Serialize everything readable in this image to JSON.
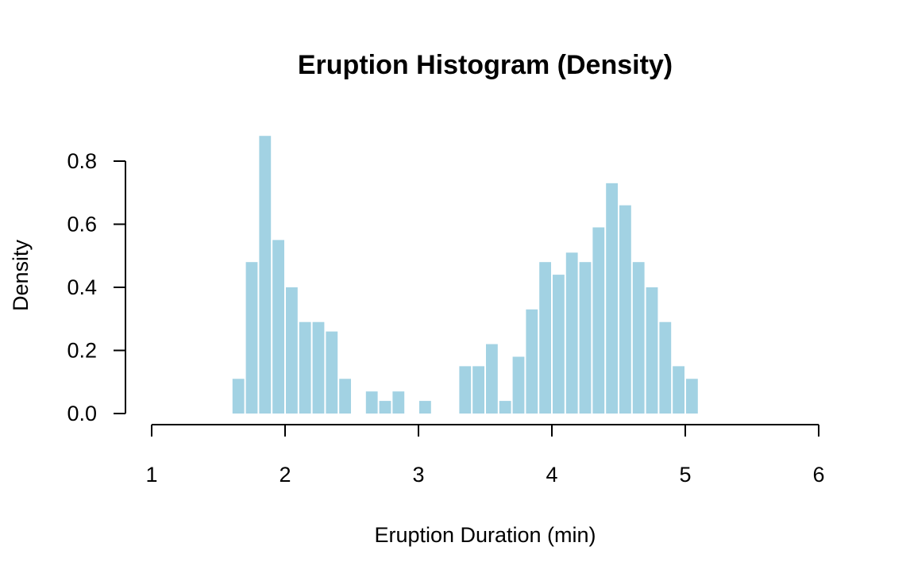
{
  "chart_data": {
    "type": "bar",
    "title": "Eruption Histogram (Density)",
    "xlabel": "Eruption Duration (min)",
    "ylabel": "Density",
    "xlim": [
      1,
      6
    ],
    "ylim": [
      0,
      0.8
    ],
    "x_ticks": [
      "1",
      "2",
      "3",
      "4",
      "5",
      "6"
    ],
    "y_ticks": [
      "0.0",
      "0.2",
      "0.4",
      "0.6",
      "0.8"
    ],
    "bin_width": 0.1,
    "bins": [
      {
        "start": 1.6,
        "value": 0.11
      },
      {
        "start": 1.7,
        "value": 0.48
      },
      {
        "start": 1.8,
        "value": 0.88
      },
      {
        "start": 1.9,
        "value": 0.55
      },
      {
        "start": 2.0,
        "value": 0.4
      },
      {
        "start": 2.1,
        "value": 0.29
      },
      {
        "start": 2.2,
        "value": 0.29
      },
      {
        "start": 2.3,
        "value": 0.26
      },
      {
        "start": 2.4,
        "value": 0.11
      },
      {
        "start": 2.6,
        "value": 0.07
      },
      {
        "start": 2.7,
        "value": 0.04
      },
      {
        "start": 2.8,
        "value": 0.07
      },
      {
        "start": 3.0,
        "value": 0.04
      },
      {
        "start": 3.3,
        "value": 0.15
      },
      {
        "start": 3.4,
        "value": 0.15
      },
      {
        "start": 3.5,
        "value": 0.22
      },
      {
        "start": 3.6,
        "value": 0.04
      },
      {
        "start": 3.7,
        "value": 0.18
      },
      {
        "start": 3.8,
        "value": 0.33
      },
      {
        "start": 3.9,
        "value": 0.48
      },
      {
        "start": 4.0,
        "value": 0.44
      },
      {
        "start": 4.1,
        "value": 0.51
      },
      {
        "start": 4.2,
        "value": 0.48
      },
      {
        "start": 4.3,
        "value": 0.59
      },
      {
        "start": 4.4,
        "value": 0.73
      },
      {
        "start": 4.5,
        "value": 0.66
      },
      {
        "start": 4.6,
        "value": 0.48
      },
      {
        "start": 4.7,
        "value": 0.4
      },
      {
        "start": 4.8,
        "value": 0.29
      },
      {
        "start": 4.9,
        "value": 0.15
      },
      {
        "start": 5.0,
        "value": 0.11
      }
    ],
    "bar_color": "#a2d2e3",
    "grid": false
  }
}
